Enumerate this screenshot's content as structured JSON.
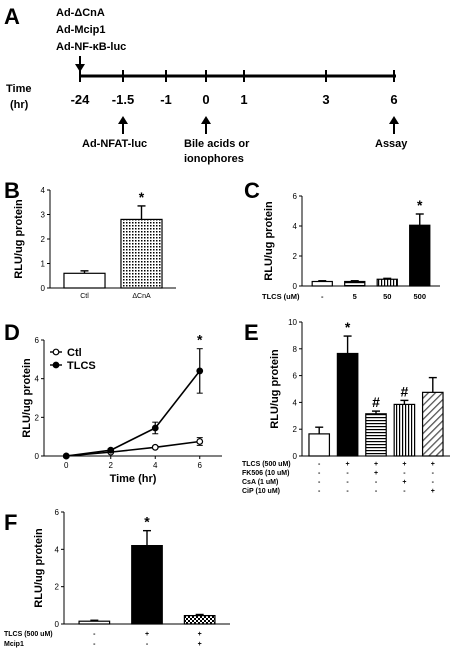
{
  "panels": {
    "A": "A",
    "B": "B",
    "C": "C",
    "D": "D",
    "E": "E",
    "F": "F"
  },
  "timeline": {
    "constructs": [
      "Ad-ΔCnA",
      "Ad-Mcip1",
      "Ad-NF-κB-luc"
    ],
    "axis_label_line1": "Time",
    "axis_label_line2": "(hr)",
    "ticks": [
      "-24",
      "-1.5",
      "-1",
      "0",
      "1",
      "3",
      "6"
    ],
    "events": {
      "nfat": "Ad-NFAT-luc",
      "treat1": "Bile acids or",
      "treat2": "ionophores",
      "assay": "Assay"
    }
  },
  "chart_data": [
    {
      "panel": "B",
      "type": "bar",
      "ylabel": "RLU/ug protein",
      "ylim": [
        0,
        4
      ],
      "yticks": [
        "0",
        "1",
        "2",
        "3",
        "4"
      ],
      "categories": [
        "Ctl",
        "ΔCnA"
      ],
      "values": [
        0.6,
        2.8
      ],
      "errors": [
        0.1,
        0.55
      ],
      "fills": [
        "white",
        "dots"
      ],
      "significance": [
        "",
        "*"
      ]
    },
    {
      "panel": "C",
      "type": "bar",
      "ylabel": "RLU/ug protein",
      "ylim": [
        0,
        6
      ],
      "yticks": [
        "0",
        "2",
        "4",
        "6"
      ],
      "row_label": "TLCS (uM)",
      "categories": [
        "-",
        "5",
        "50",
        "500"
      ],
      "values": [
        0.3,
        0.3,
        0.45,
        4.05
      ],
      "errors": [
        0.05,
        0.05,
        0.06,
        0.75
      ],
      "fills": [
        "white",
        "hlines",
        "vlines",
        "black"
      ],
      "significance": [
        "",
        "",
        "",
        "*"
      ]
    },
    {
      "panel": "D",
      "type": "line",
      "ylabel": "RLU/ug protein",
      "xlabel": "Time (hr)",
      "ylim": [
        0,
        6
      ],
      "yticks": [
        "0",
        "2",
        "4",
        "6"
      ],
      "xlim": [
        -1,
        7
      ],
      "xticks": [
        "0",
        "2",
        "4",
        "6"
      ],
      "x": [
        0,
        2,
        4,
        6
      ],
      "legend": [
        "Ctl",
        "TLCS"
      ],
      "series": [
        {
          "name": "Ctl",
          "values": [
            0,
            0.2,
            0.45,
            0.75
          ],
          "errors": [
            0.03,
            0.05,
            0.07,
            0.2
          ],
          "marker": "open"
        },
        {
          "name": "TLCS",
          "values": [
            0,
            0.3,
            1.45,
            4.4
          ],
          "errors": [
            0.04,
            0.08,
            0.3,
            1.15
          ],
          "marker": "filled"
        }
      ],
      "significance": [
        {
          "x": 6,
          "label": "*"
        }
      ]
    },
    {
      "panel": "E",
      "type": "bar",
      "ylabel": "RLU/ug protein",
      "ylim": [
        0,
        10
      ],
      "yticks": [
        "0",
        "2",
        "4",
        "6",
        "8",
        "10"
      ],
      "row_labels": [
        "TLCS (500 uM)",
        "FK506 (10 uM)",
        "CsA (1 uM)",
        "CiP (10 uM)"
      ],
      "condition_rows": [
        [
          "-",
          "+",
          "+",
          "+",
          "+"
        ],
        [
          "-",
          "-",
          "+",
          "-",
          "-"
        ],
        [
          "-",
          "-",
          "-",
          "+",
          "-"
        ],
        [
          "-",
          "-",
          "-",
          "-",
          "+"
        ]
      ],
      "values": [
        1.65,
        7.65,
        3.15,
        3.85,
        4.75
      ],
      "errors": [
        0.5,
        1.3,
        0.2,
        0.3,
        1.1
      ],
      "fills": [
        "white",
        "black",
        "hlines",
        "vlines",
        "diag"
      ],
      "significance": [
        "",
        "*",
        "#",
        "#",
        ""
      ]
    },
    {
      "panel": "F",
      "type": "bar",
      "ylabel": "RLU/ug protein",
      "ylim": [
        0,
        6
      ],
      "yticks": [
        "0",
        "2",
        "4",
        "6"
      ],
      "row_labels": [
        "TLCS (500 uM)",
        "Mcip1"
      ],
      "condition_rows": [
        [
          "-",
          "+",
          "+"
        ],
        [
          "-",
          "-",
          "+"
        ]
      ],
      "values": [
        0.15,
        4.2,
        0.45
      ],
      "errors": [
        0.05,
        0.8,
        0.06
      ],
      "fills": [
        "white",
        "black",
        "checker"
      ],
      "significance": [
        "",
        "*",
        ""
      ]
    }
  ]
}
